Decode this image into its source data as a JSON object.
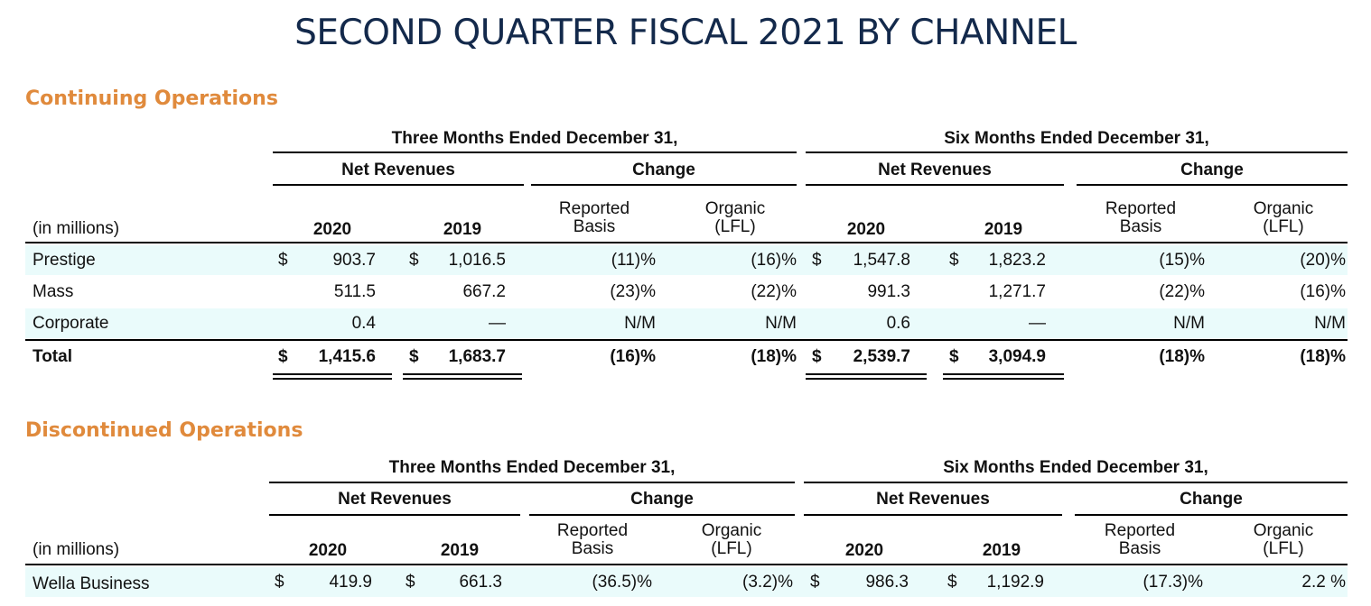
{
  "title": "SECOND QUARTER FISCAL 2021 BY CHANNEL",
  "continuing": {
    "heading": "Continuing Operations",
    "period_three": "Three Months Ended December 31,",
    "period_six": "Six Months Ended December 31,",
    "net_revenues": "Net Revenues",
    "change": "Change",
    "units": "(in millions)",
    "year_current": "2020",
    "year_prior": "2019",
    "reported": "Reported\nBasis",
    "organic": "Organic\n(LFL)",
    "rows": [
      {
        "label": "Prestige",
        "cur_sign": "$",
        "q_2020": "903.7",
        "q_2019_sign": "$",
        "q_2019": "1,016.5",
        "q_rep": "(11)%",
        "q_org": "(16)%",
        "s_sign": "$",
        "s_2020": "1,547.8",
        "s_2019_sign": "$",
        "s_2019": "1,823.2",
        "s_rep": "(15)%",
        "s_org": "(20)%"
      },
      {
        "label": "Mass",
        "cur_sign": "",
        "q_2020": "511.5",
        "q_2019_sign": "",
        "q_2019": "667.2",
        "q_rep": "(23)%",
        "q_org": "(22)%",
        "s_sign": "",
        "s_2020": "991.3",
        "s_2019_sign": "",
        "s_2019": "1,271.7",
        "s_rep": "(22)%",
        "s_org": "(16)%"
      },
      {
        "label": "Corporate",
        "cur_sign": "",
        "q_2020": "0.4",
        "q_2019_sign": "",
        "q_2019": "—",
        "q_rep": "N/M",
        "q_org": "N/M",
        "s_sign": "",
        "s_2020": "0.6",
        "s_2019_sign": "",
        "s_2019": "—",
        "s_rep": "N/M",
        "s_org": "N/M"
      },
      {
        "label": "Total",
        "cur_sign": "$",
        "q_2020": "1,415.6",
        "q_2019_sign": "$",
        "q_2019": "1,683.7",
        "q_rep": "(16)%",
        "q_org": "(18)%",
        "s_sign": "$",
        "s_2020": "2,539.7",
        "s_2019_sign": "$",
        "s_2019": "3,094.9",
        "s_rep": "(18)%",
        "s_org": "(18)%"
      }
    ]
  },
  "discontinued": {
    "heading": "Discontinued Operations",
    "period_three": "Three Months Ended December 31,",
    "period_six": "Six Months Ended December 31,",
    "net_revenues": "Net Revenues",
    "change": "Change",
    "units": "(in millions)",
    "year_current": "2020",
    "year_prior": "2019",
    "reported": "Reported\nBasis",
    "organic": "Organic\n(LFL)",
    "rows": [
      {
        "label": "Wella Business",
        "cur_sign": "$",
        "q_2020": "419.9",
        "q_2019_sign": "$",
        "q_2019": "661.3",
        "q_rep": "(36.5)%",
        "q_org": "(3.2)%",
        "s_sign": "$",
        "s_2020": "986.3",
        "s_2019_sign": "$",
        "s_2019": "1,192.9",
        "s_rep": "(17.3)%",
        "s_org": "2.2 %"
      }
    ]
  }
}
